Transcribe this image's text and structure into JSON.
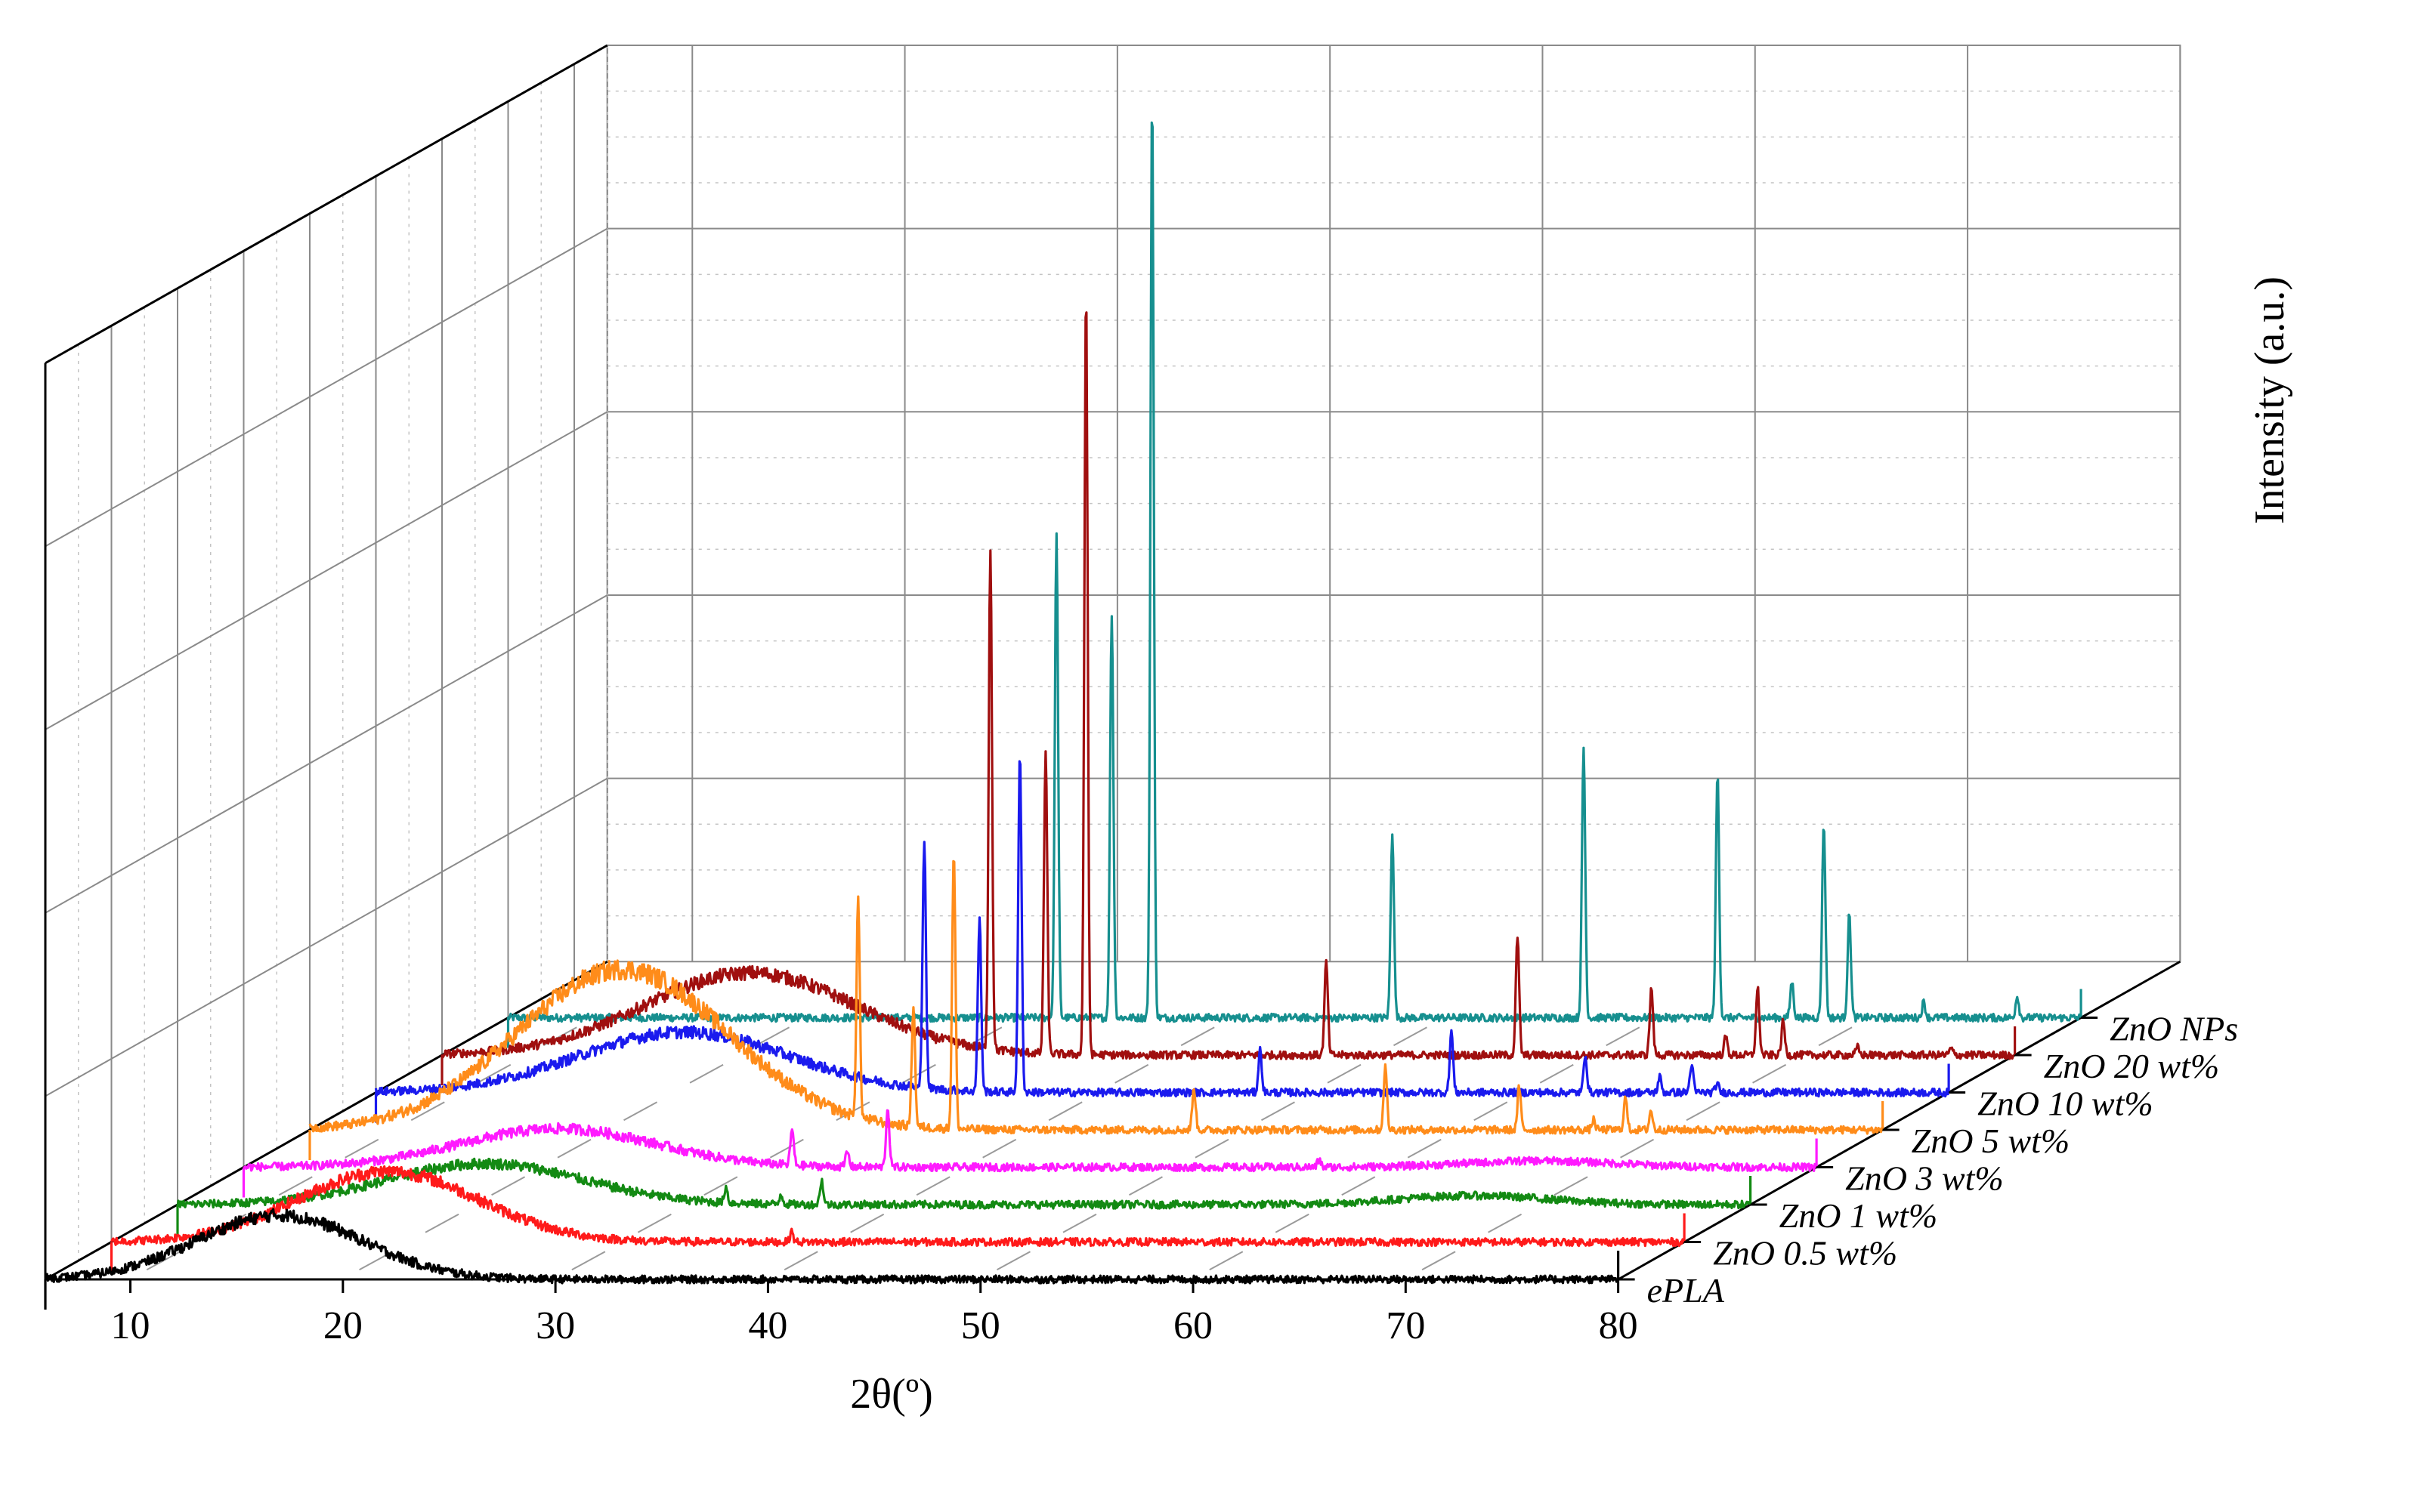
{
  "chart_data": {
    "type": "line",
    "style": "3D waterfall",
    "xlabel": "2θ(º)",
    "ylabel": "Intensity (a.u.)",
    "xlim": [
      6,
      80
    ],
    "xticks": [
      10,
      20,
      30,
      40,
      50,
      60,
      70,
      80
    ],
    "series": [
      {
        "name": "ePLA",
        "color": "#000000",
        "amorphous": {
          "center": 17,
          "width": 5.5,
          "height": 0.05
        },
        "peaks": []
      },
      {
        "name": "ZnO 0.5 wt%",
        "color": "#ff1a1a",
        "amorphous": {
          "center": 19,
          "width": 6,
          "height": 0.055
        },
        "peaks": [
          {
            "x": 38,
            "h": 0.008
          }
        ]
      },
      {
        "name": "ZnO 1 wt%",
        "color": "#138a13",
        "amorphous": {
          "center": 20.5,
          "width": 6.5,
          "height": 0.032
        },
        "broad": {
          "center": 67,
          "width": 5,
          "height": 0.007
        },
        "peaks": [
          {
            "x": 31.8,
            "h": 0.012
          },
          {
            "x": 34.4,
            "h": 0.008
          },
          {
            "x": 36.3,
            "h": 0.019
          }
        ]
      },
      {
        "name": "ZnO 3 wt%",
        "color": "#ff1aff",
        "amorphous": {
          "center": 20.8,
          "width": 6.5,
          "height": 0.03
        },
        "broad": {
          "center": 67,
          "width": 5,
          "height": 0.005
        },
        "peaks": [
          {
            "x": 31.8,
            "h": 0.028
          },
          {
            "x": 34.4,
            "h": 0.012
          },
          {
            "x": 36.3,
            "h": 0.046
          },
          {
            "x": 56.6,
            "h": 0.006
          }
        ]
      },
      {
        "name": "ZnO 5 wt%",
        "color": "#ff8c1a",
        "amorphous": {
          "center": 20.7,
          "width": 7,
          "height": 0.125
        },
        "peaks": [
          {
            "x": 31.8,
            "h": 0.17
          },
          {
            "x": 34.4,
            "h": 0.095
          },
          {
            "x": 36.3,
            "h": 0.215
          },
          {
            "x": 47.6,
            "h": 0.033
          },
          {
            "x": 56.6,
            "h": 0.049
          },
          {
            "x": 62.9,
            "h": 0.033
          },
          {
            "x": 66.4,
            "h": 0.008
          },
          {
            "x": 67.9,
            "h": 0.025
          },
          {
            "x": 69.1,
            "h": 0.015
          }
        ]
      },
      {
        "name": "ZnO 10 wt%",
        "color": "#1a1aee",
        "amorphous": {
          "center": 20.5,
          "width": 7,
          "height": 0.047
        },
        "peaks": [
          {
            "x": 31.8,
            "h": 0.195
          },
          {
            "x": 34.4,
            "h": 0.135
          },
          {
            "x": 36.3,
            "h": 0.265
          },
          {
            "x": 47.6,
            "h": 0.033
          },
          {
            "x": 56.6,
            "h": 0.048
          },
          {
            "x": 62.9,
            "h": 0.03
          },
          {
            "x": 66.4,
            "h": 0.012
          },
          {
            "x": 67.9,
            "h": 0.022
          },
          {
            "x": 69.1,
            "h": 0.007
          }
        ]
      },
      {
        "name": "ZnO 20 wt%",
        "color": "#a00f0f",
        "amorphous": {
          "center": 20.5,
          "width": 7,
          "height": 0.064
        },
        "peaks": [
          {
            "x": 31.8,
            "h": 0.39
          },
          {
            "x": 34.4,
            "h": 0.235
          },
          {
            "x": 36.3,
            "h": 0.595
          },
          {
            "x": 47.6,
            "h": 0.073
          },
          {
            "x": 56.6,
            "h": 0.093
          },
          {
            "x": 62.9,
            "h": 0.052
          },
          {
            "x": 66.4,
            "h": 0.014
          },
          {
            "x": 67.9,
            "h": 0.052
          },
          {
            "x": 69.1,
            "h": 0.026
          },
          {
            "x": 72.6,
            "h": 0.006
          },
          {
            "x": 77,
            "h": 0.005
          }
        ]
      },
      {
        "name": "ZnO NPs",
        "color": "#168f8f",
        "amorphous": {
          "center": 25,
          "width": 5,
          "height": 0
        },
        "peaks": [
          {
            "x": 31.8,
            "h": 0.375
          },
          {
            "x": 34.4,
            "h": 0.315
          },
          {
            "x": 36.3,
            "h": 0.72
          },
          {
            "x": 47.6,
            "h": 0.145
          },
          {
            "x": 56.6,
            "h": 0.21
          },
          {
            "x": 62.9,
            "h": 0.19
          },
          {
            "x": 66.4,
            "h": 0.028
          },
          {
            "x": 67.9,
            "h": 0.152
          },
          {
            "x": 69.1,
            "h": 0.08
          },
          {
            "x": 72.6,
            "h": 0.012
          },
          {
            "x": 77,
            "h": 0.017
          }
        ]
      }
    ]
  }
}
